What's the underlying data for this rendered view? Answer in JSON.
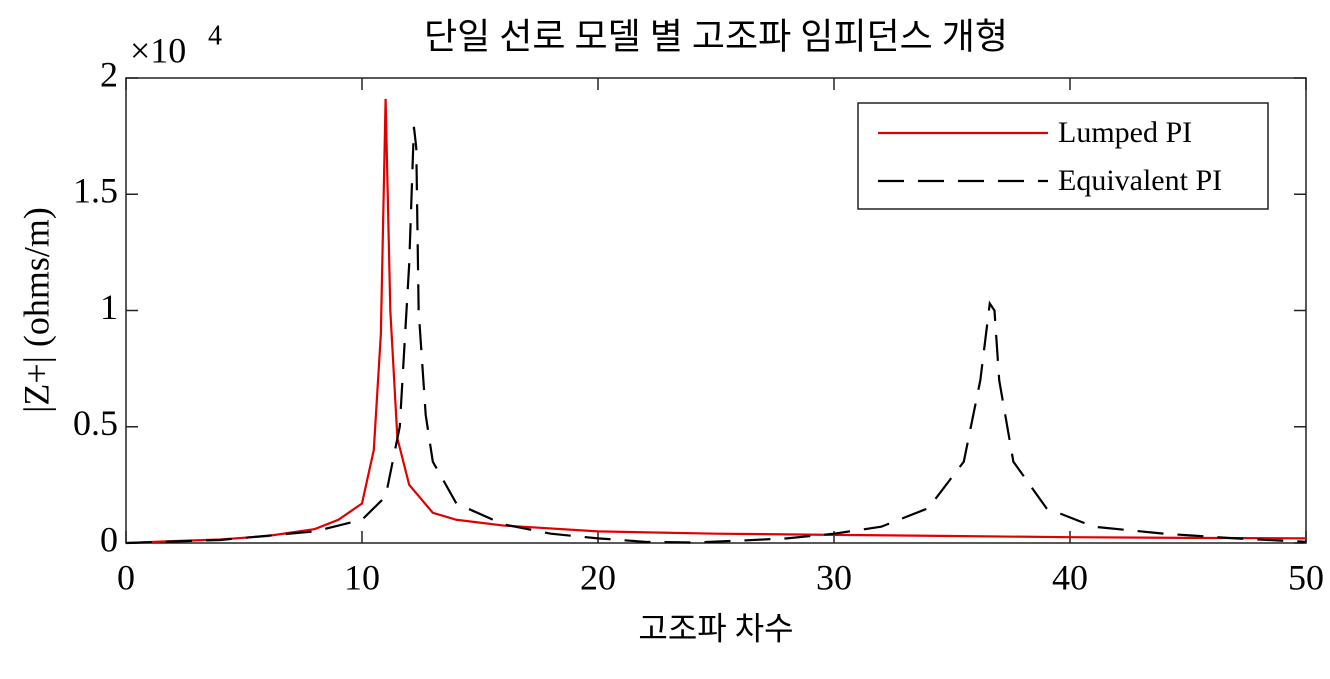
{
  "chart_data": {
    "type": "line",
    "title": "단일 선로 모델 별 고조파 임피던스 개형",
    "x_label": "고조파 차수",
    "y_label": "|Z+| (ohms/m)",
    "y_multiplier": "×10",
    "y_multiplier_exponent": "4",
    "xlim": [
      0,
      50
    ],
    "xticks": [
      0,
      10,
      20,
      30,
      40,
      50
    ],
    "ylim": [
      0,
      2
    ],
    "yticks": [
      0,
      0.5,
      1,
      1.5,
      2
    ],
    "grid": false,
    "legend_position": "northeast",
    "series": [
      {
        "name": "Lumped PI",
        "color": "#e00000",
        "line_style": "solid",
        "x": [
          0,
          2,
          4,
          6,
          8,
          9,
          10,
          10.5,
          10.8,
          11.0,
          11.2,
          11.5,
          12,
          13,
          14,
          16,
          20,
          25,
          30,
          35,
          40,
          45,
          50
        ],
        "values": [
          0,
          0.008,
          0.015,
          0.03,
          0.06,
          0.1,
          0.17,
          0.4,
          0.9,
          1.91,
          1.0,
          0.45,
          0.25,
          0.13,
          0.1,
          0.075,
          0.05,
          0.04,
          0.035,
          0.03,
          0.025,
          0.022,
          0.02
        ]
      },
      {
        "name": "Equivalent PI",
        "color": "#000000",
        "line_style": "dashed",
        "x": [
          0,
          4,
          8,
          10,
          11,
          11.6,
          12.0,
          12.2,
          12.3,
          12.4,
          12.7,
          13,
          14,
          16,
          18,
          20,
          22,
          24,
          26,
          28,
          30,
          32,
          34,
          35.5,
          36.2,
          36.6,
          36.8,
          37.0,
          37.6,
          39,
          41,
          44,
          47,
          50
        ],
        "values": [
          0,
          0.013,
          0.05,
          0.1,
          0.2,
          0.5,
          1.2,
          1.79,
          1.7,
          1.0,
          0.55,
          0.35,
          0.17,
          0.08,
          0.04,
          0.02,
          0.005,
          0.002,
          0.01,
          0.02,
          0.04,
          0.07,
          0.15,
          0.35,
          0.7,
          1.03,
          1.0,
          0.7,
          0.35,
          0.15,
          0.07,
          0.04,
          0.02,
          0.005
        ]
      }
    ]
  }
}
